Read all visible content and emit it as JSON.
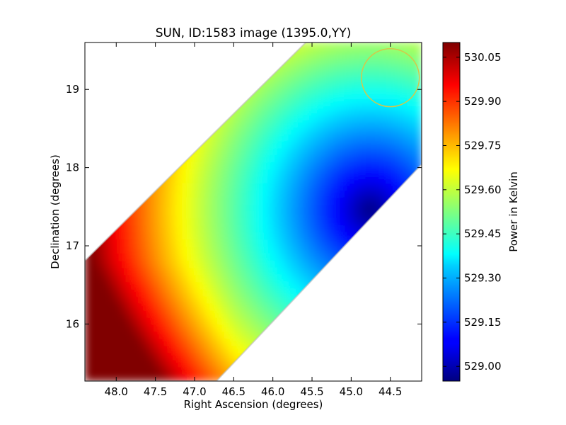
{
  "chart_data": {
    "type": "heatmap",
    "title": "SUN, ID:1583 image (1395.0,YY)",
    "xlabel": "Right Ascension (degrees)",
    "ylabel": "Declination (degrees)",
    "colorbar_label": "Power in Kelvin",
    "xlim": [
      48.4,
      44.1
    ],
    "ylim": [
      15.27,
      19.6
    ],
    "x_inverted": true,
    "x_ticks": [
      48.0,
      47.5,
      47.0,
      46.5,
      46.0,
      45.5,
      45.0,
      44.5
    ],
    "x_tick_labels": [
      "48.0",
      "47.5",
      "47.0",
      "46.5",
      "46.0",
      "45.5",
      "45.0",
      "44.5"
    ],
    "y_ticks": [
      16,
      17,
      18,
      19
    ],
    "y_tick_labels": [
      "16",
      "17",
      "18",
      "19"
    ],
    "colorbar_range": [
      528.95,
      530.1
    ],
    "colorbar_ticks": [
      529.0,
      529.15,
      529.3,
      529.45,
      529.6,
      529.75,
      529.9,
      530.05
    ],
    "colorbar_tick_labels": [
      "529.00",
      "529.15",
      "529.30",
      "529.45",
      "529.60",
      "529.75",
      "529.90",
      "530.05"
    ],
    "colormap": "jet",
    "grid": false,
    "field_values": {
      "min": 528.95,
      "min_location": [
        44.75,
        17.45
      ],
      "max": 530.1,
      "max_location": [
        48.4,
        15.27
      ]
    },
    "marker_circle": {
      "center": [
        44.5,
        19.15
      ],
      "radius_deg": 0.37,
      "color": "#d4c84a"
    }
  }
}
